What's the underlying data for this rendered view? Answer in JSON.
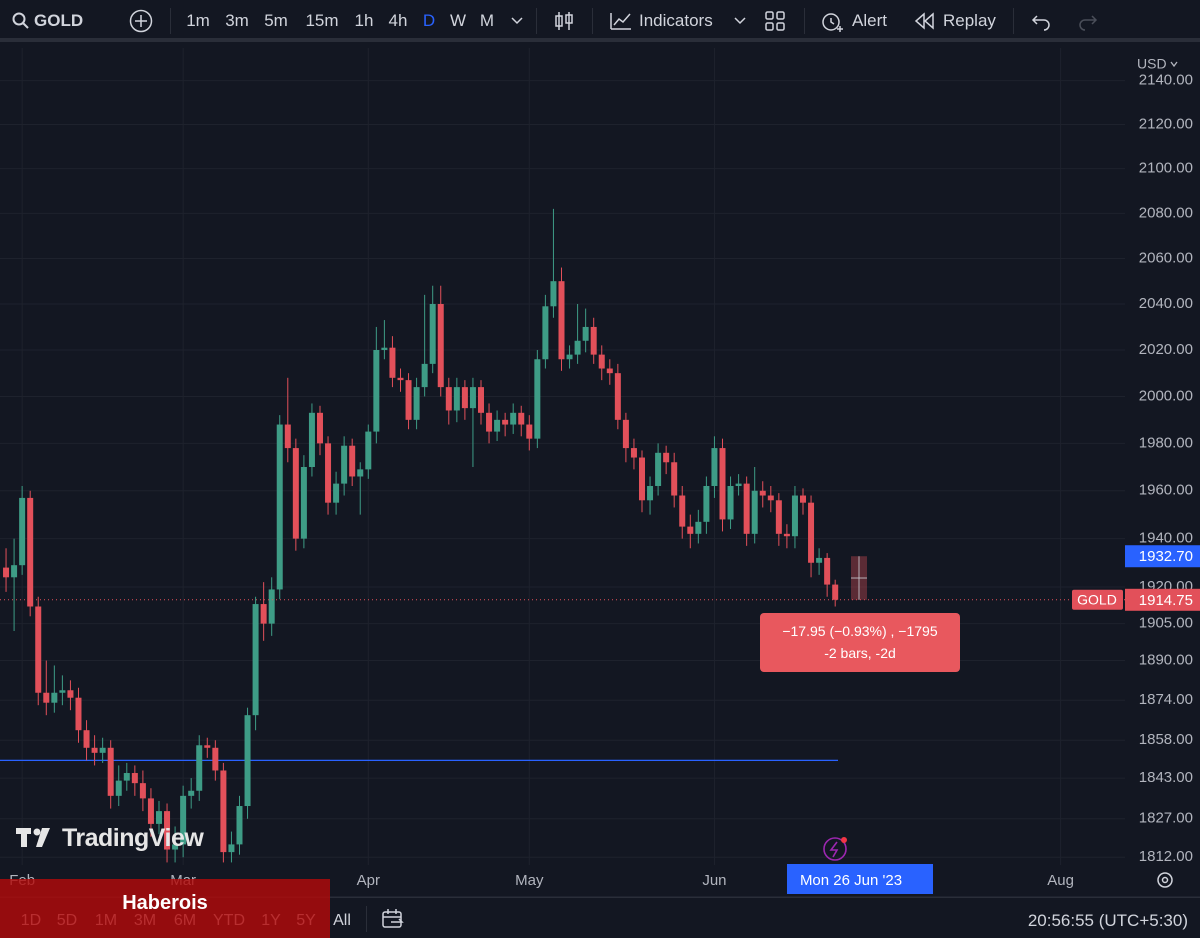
{
  "toolbar": {
    "symbol": "GOLD",
    "intervals": [
      "1m",
      "3m",
      "5m",
      "15m",
      "1h",
      "4h",
      "D",
      "W",
      "M"
    ],
    "active_interval": 6,
    "indicators": "Indicators",
    "alert": "Alert",
    "replay": "Replay"
  },
  "chart_data": {
    "type": "candlestick",
    "currency": "USD",
    "log_scale": true,
    "grid": true,
    "up_color": "#3e9c86",
    "down_color": "#e2505a",
    "open": [
      1928,
      1924,
      1929,
      1957,
      1912,
      1877,
      1873,
      1877,
      1878,
      1875,
      1862,
      1855,
      1853,
      1855,
      1836,
      1842,
      1845,
      1841,
      1835,
      1825,
      1830,
      1815,
      1817,
      1836,
      1838,
      1856,
      1855,
      1846,
      1814,
      1817,
      1832,
      1868,
      1913,
      1905,
      1919,
      1988,
      1978,
      1940,
      1970,
      1993,
      1980,
      1955,
      1963,
      1979,
      1966,
      1969,
      1985,
      2020,
      2021,
      2008,
      2007,
      1990,
      2004,
      2014,
      2040,
      2004,
      1994,
      2004,
      1995,
      2004,
      1993,
      1985,
      1990,
      1988,
      1993,
      1988,
      1982,
      2016,
      2039,
      2050,
      2016,
      2018,
      2024,
      2030,
      2018,
      2012,
      2010,
      1990,
      1978,
      1974,
      1956,
      1962,
      1976,
      1972,
      1958,
      1945,
      1942,
      1947,
      1962,
      1978,
      1948,
      1962,
      1963,
      1942,
      1960,
      1958,
      1956,
      1942,
      1941,
      1958,
      1955,
      1930,
      1932,
      1921
    ],
    "high": [
      1936,
      1940,
      1962,
      1960,
      1916,
      1890,
      1888,
      1884,
      1882,
      1879,
      1866,
      1860,
      1859,
      1858,
      1848,
      1849,
      1848,
      1846,
      1839,
      1834,
      1833,
      1824,
      1840,
      1843,
      1860,
      1859,
      1858,
      1849,
      1822,
      1836,
      1871,
      1916,
      1922,
      1924,
      1992,
      2008,
      1982,
      1975,
      1997,
      1996,
      1983,
      1968,
      1983,
      1982,
      1972,
      1988,
      2030,
      2033,
      2026,
      2012,
      2010,
      2008,
      2044,
      2048,
      2048,
      2008,
      2008,
      2007,
      2008,
      2007,
      1997,
      1994,
      1993,
      1997,
      1996,
      1992,
      2020,
      2044,
      2082,
      2056,
      2022,
      2040,
      2038,
      2034,
      2022,
      2016,
      2014,
      1993,
      1982,
      1977,
      1966,
      1980,
      1979,
      1976,
      1962,
      1950,
      1952,
      1966,
      1983,
      1982,
      1966,
      1967,
      1966,
      1970,
      1964,
      1962,
      1959,
      1946,
      1962,
      1961,
      1958,
      1936,
      1934,
      1923
    ],
    "low": [
      1918,
      1902,
      1925,
      1908,
      1872,
      1868,
      1869,
      1872,
      1870,
      1857,
      1850,
      1848,
      1849,
      1831,
      1832,
      1838,
      1836,
      1830,
      1820,
      1821,
      1810,
      1810,
      1812,
      1831,
      1834,
      1851,
      1842,
      1810,
      1810,
      1813,
      1827,
      1862,
      1898,
      1900,
      1915,
      1972,
      1935,
      1936,
      1966,
      1975,
      1950,
      1950,
      1958,
      1962,
      1950,
      1965,
      1980,
      2016,
      2004,
      2002,
      1986,
      1986,
      2000,
      2010,
      2000,
      1988,
      1989,
      1990,
      1970,
      1988,
      1980,
      1981,
      1983,
      1984,
      1983,
      1977,
      1978,
      2012,
      2034,
      2011,
      2012,
      2014,
      2019,
      2014,
      2007,
      2005,
      1986,
      1972,
      1969,
      1951,
      1950,
      1958,
      1967,
      1953,
      1940,
      1936,
      1938,
      1942,
      1957,
      1943,
      1944,
      1958,
      1937,
      1938,
      1953,
      1951,
      1937,
      1936,
      1936,
      1950,
      1924,
      1925,
      1916,
      1912
    ],
    "close": [
      1924,
      1929,
      1957,
      1912,
      1877,
      1873,
      1877,
      1878,
      1875,
      1862,
      1855,
      1853,
      1855,
      1836,
      1842,
      1845,
      1841,
      1835,
      1825,
      1830,
      1815,
      1817,
      1836,
      1838,
      1856,
      1855,
      1846,
      1814,
      1817,
      1832,
      1868,
      1913,
      1905,
      1919,
      1988,
      1978,
      1940,
      1970,
      1993,
      1980,
      1955,
      1963,
      1979,
      1966,
      1969,
      1985,
      2020,
      2021,
      2008,
      2007,
      1990,
      2004,
      2014,
      2040,
      2004,
      1994,
      2004,
      1995,
      2004,
      1993,
      1985,
      1990,
      1988,
      1993,
      1988,
      1982,
      2016,
      2039,
      2050,
      2016,
      2018,
      2024,
      2030,
      2018,
      2012,
      2010,
      1990,
      1978,
      1974,
      1956,
      1962,
      1976,
      1972,
      1958,
      1945,
      1942,
      1947,
      1962,
      1978,
      1948,
      1962,
      1963,
      1942,
      1960,
      1958,
      1956,
      1942,
      1941,
      1958,
      1955,
      1930,
      1932,
      1921,
      1914.75
    ],
    "xlim": [
      -0.75,
      139
    ],
    "xticks": [
      {
        "value": 2,
        "label": "Feb"
      },
      {
        "value": 22,
        "label": "Mar"
      },
      {
        "value": 45,
        "label": "Apr"
      },
      {
        "value": 65,
        "label": "May"
      },
      {
        "value": 88,
        "label": "Jun"
      },
      {
        "value": 131,
        "label": "Aug"
      }
    ],
    "ylim": [
      1809,
      2155
    ],
    "yticks": [
      {
        "value": 2140,
        "label": "2140.00"
      },
      {
        "value": 2120,
        "label": "2120.00"
      },
      {
        "value": 2100,
        "label": "2100.00"
      },
      {
        "value": 2080,
        "label": "2080.00"
      },
      {
        "value": 2060,
        "label": "2060.00"
      },
      {
        "value": 2040,
        "label": "2040.00"
      },
      {
        "value": 2020,
        "label": "2020.00"
      },
      {
        "value": 2000,
        "label": "2000.00"
      },
      {
        "value": 1980,
        "label": "1980.00"
      },
      {
        "value": 1960,
        "label": "1960.00"
      },
      {
        "value": 1940,
        "label": "1940.00"
      },
      {
        "value": 1920,
        "label": "1920.00"
      },
      {
        "value": 1905,
        "label": "1905.00"
      },
      {
        "value": 1890,
        "label": "1890.00"
      },
      {
        "value": 1874,
        "label": "1874.00"
      },
      {
        "value": 1858,
        "label": "1858.00"
      },
      {
        "value": 1843,
        "label": "1843.00"
      },
      {
        "value": 1827,
        "label": "1827.00"
      },
      {
        "value": 1812,
        "label": "1812.00"
      }
    ],
    "last_price": 1914.75,
    "last_price_tag": "GOLD",
    "crosshair_price": {
      "value": 1932.7,
      "label": "1932.70"
    },
    "crosshair_date": "Mon 26 Jun '23",
    "hline": 1850,
    "hline_color": "#2962ff",
    "measure": {
      "change": "−17.95 (−0.93%) , −1795",
      "span": "-2 bars, -2d"
    }
  },
  "watermark": "TradingView",
  "banner": "Haberois",
  "bottom_bar": {
    "ranges": [
      "1D",
      "5D",
      "1M",
      "3M",
      "6M",
      "YTD",
      "1Y",
      "5Y",
      "All"
    ],
    "clock": "20:56:55 (UTC+5:30)"
  }
}
